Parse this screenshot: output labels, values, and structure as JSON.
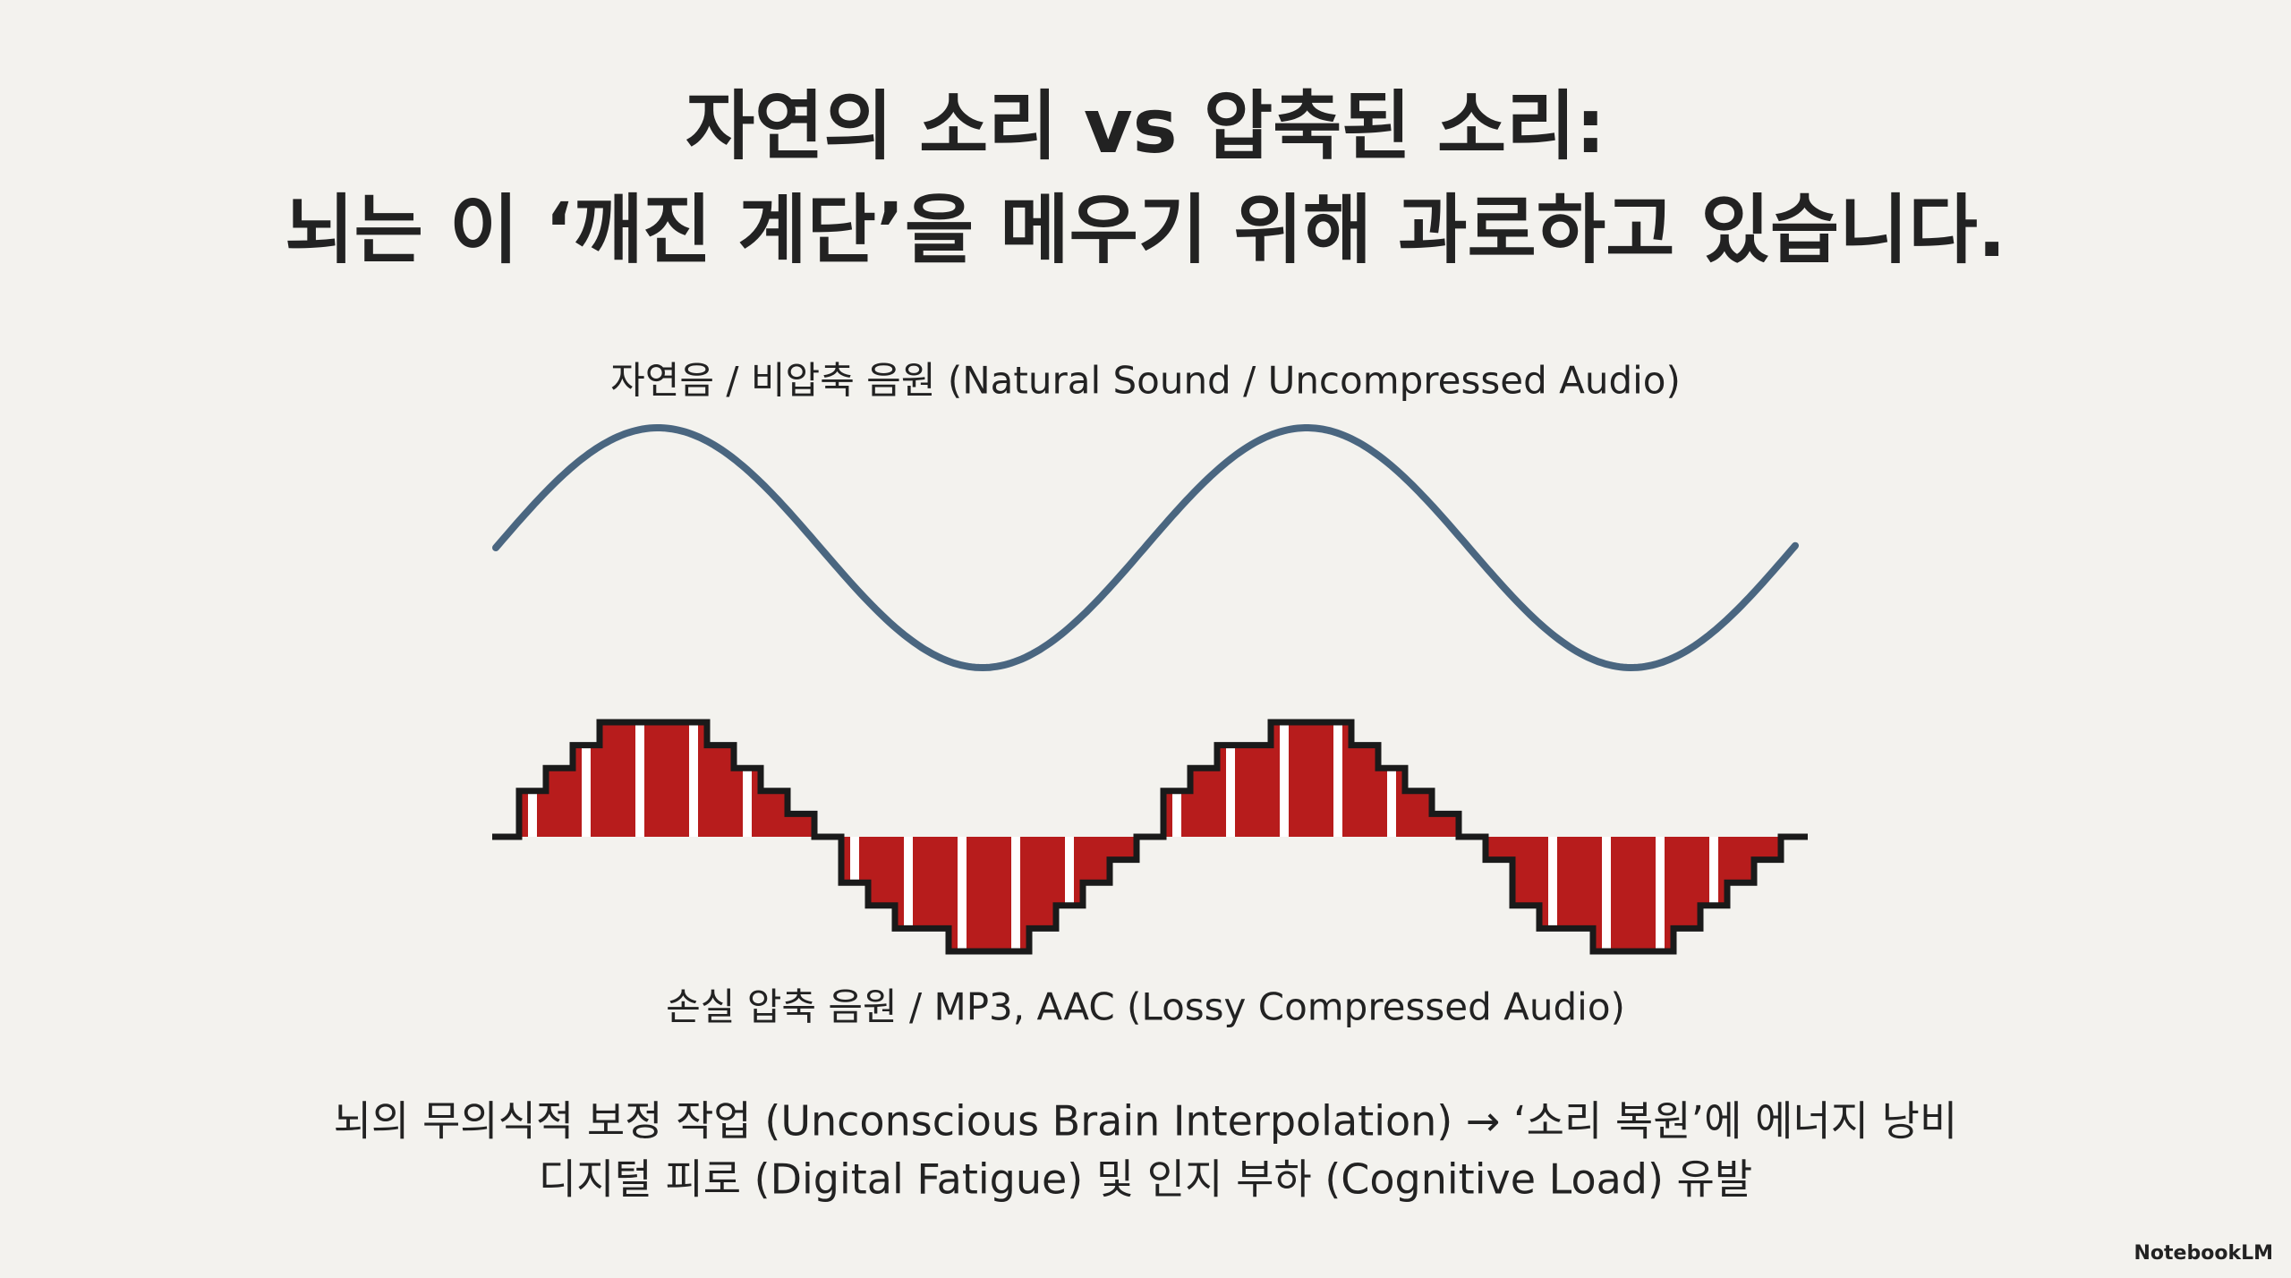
{
  "title": {
    "line1": "자연의 소리 vs 압축된 소리:",
    "line2": "뇌는 이 ‘깨진 계단’을 메우기 위해 과로하고 있습니다."
  },
  "natural_label": "자연음 / 비압축 음원 (Natural Sound / Uncompressed Audio)",
  "lossy_label": "손실 압축 음원 / MP3, AAC (Lossy Compressed Audio)",
  "notes": [
    "뇌의 무의식적 보정 작업 (Unconscious Brain Interpolation) → ‘소리 복원’에 에너지 낭비",
    "디지털 피로 (Digital Fatigue) 및 인지 부하 (Cognitive Load) 유발"
  ],
  "brand": "NotebookLM"
}
